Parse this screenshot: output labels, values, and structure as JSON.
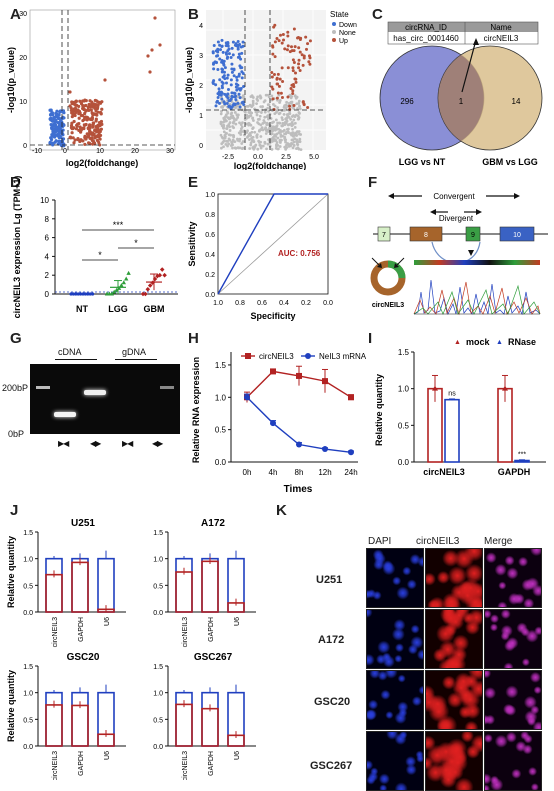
{
  "panels": {
    "A": "A",
    "B": "B",
    "C": "C",
    "D": "D",
    "E": "E",
    "F": "F",
    "G": "G",
    "H": "H",
    "I": "I",
    "J": "J",
    "K": "K"
  },
  "colors": {
    "red": "#b22222",
    "blue": "#1f3fbf",
    "green": "#2e9e3a",
    "down": "#3f6fd1",
    "up": "#b5523b",
    "none": "#bdbdbd",
    "venn_left": "#8a8fd6",
    "venn_right": "#d9be8c"
  },
  "volcanoA": {
    "xlabel": "log2(foldchange)",
    "ylabel": "-log10(p_value)",
    "xticks": [
      "-10",
      "0",
      "10",
      "20",
      "30"
    ],
    "yticks": [
      "0",
      "10",
      "20",
      "30"
    ]
  },
  "volcanoB": {
    "xlabel": "log2(foldchange)",
    "ylabel": "-log10(p_value)",
    "xticks": [
      "-2.5",
      "0.0",
      "2.5",
      "5.0"
    ],
    "yticks": [
      "0",
      "1",
      "2",
      "3",
      "4"
    ],
    "legend_title": "State",
    "legend": [
      "Down",
      "None",
      "Up"
    ]
  },
  "venn": {
    "table_headers": [
      "circRNA_ID",
      "Name"
    ],
    "table_row": [
      "has_circ_0001460",
      "circNEIL3"
    ],
    "left_count": "296",
    "center_count": "1",
    "right_count": "14",
    "left_label": "LGG vs NT",
    "right_label": "GBM vs LGG"
  },
  "chart_data": [
    {
      "panel": "D",
      "type": "scatter",
      "ylabel": "circNEIL3 expression\nLg (TPM+1)",
      "categories": [
        "NT",
        "LGG",
        "GBM"
      ],
      "yticks": [
        "0",
        "2",
        "4",
        "6",
        "8",
        "10"
      ],
      "ylim": [
        0,
        10
      ],
      "significance": [
        "*",
        "***",
        "*"
      ],
      "series": [
        {
          "category": "NT",
          "values": [
            0,
            0,
            0,
            0,
            0,
            0,
            0,
            0,
            0,
            0
          ]
        },
        {
          "category": "LGG",
          "values": [
            0,
            0,
            0,
            0.2,
            0.4,
            0.6,
            0.9,
            1.2,
            1.6,
            2.2
          ]
        },
        {
          "category": "GBM",
          "values": [
            0,
            0,
            0.5,
            0.9,
            1.2,
            1.6,
            1.9,
            2.0,
            2.6,
            2.0
          ]
        }
      ]
    },
    {
      "panel": "E",
      "type": "line",
      "xlabel": "Specificity",
      "ylabel": "Sensitivity",
      "xticks": [
        "1.0",
        "0.8",
        "0.6",
        "0.4",
        "0.2",
        "0.0"
      ],
      "yticks": [
        "0.0",
        "0.2",
        "0.4",
        "0.6",
        "0.8",
        "1.0"
      ],
      "annotation": "AUC: 0.756",
      "roc": [
        [
          1.0,
          0.0
        ],
        [
          0.49,
          1.0
        ],
        [
          0.0,
          1.0
        ]
      ]
    },
    {
      "panel": "H",
      "type": "line",
      "xlabel": "Times",
      "ylabel": "Relative RNA expression",
      "categories": [
        "0h",
        "4h",
        "8h",
        "12h",
        "24h"
      ],
      "yticks": [
        "0.0",
        "0.5",
        "1.0",
        "1.5"
      ],
      "ylim": [
        0,
        1.7
      ],
      "series": [
        {
          "name": "circNEIL3",
          "values": [
            1.0,
            1.4,
            1.33,
            1.25,
            1.0
          ]
        },
        {
          "name": "NeIL3 mRNA",
          "values": [
            1.0,
            0.6,
            0.27,
            0.2,
            0.15
          ]
        }
      ]
    },
    {
      "panel": "I",
      "type": "bar",
      "ylabel": "Relative quantity",
      "categories": [
        "circNEIL3",
        "GAPDH"
      ],
      "yticks": [
        "0.0",
        "0.5",
        "1.0",
        "1.5"
      ],
      "ylim": [
        0,
        1.5
      ],
      "series": [
        {
          "name": "mock",
          "values": [
            1.0,
            1.0
          ]
        },
        {
          "name": "RNase",
          "values": [
            0.85,
            0.02
          ]
        }
      ],
      "annotations": [
        "ns",
        "***"
      ]
    },
    {
      "panel": "J",
      "type": "bar",
      "subplots": [
        {
          "title": "U251",
          "categories": [
            "circNEIL3",
            "GAPDH",
            "U6"
          ],
          "nuclear_fraction": [
            0.7,
            0.93,
            0.05
          ]
        },
        {
          "title": "A172",
          "categories": [
            "circNEIL3",
            "GAPDH",
            "U6"
          ],
          "nuclear_fraction": [
            0.75,
            0.95,
            0.17
          ]
        },
        {
          "title": "GSC20",
          "categories": [
            "circNEIL3",
            "GAPDH",
            "U6"
          ],
          "nuclear_fraction": [
            0.77,
            0.76,
            0.22
          ]
        },
        {
          "title": "GSC267",
          "categories": [
            "circNEIL3",
            "GAPDH",
            "U6"
          ],
          "nuclear_fraction": [
            0.78,
            0.7,
            0.2
          ]
        }
      ],
      "ylabel": "Relative quantity",
      "yticks": [
        "0.0",
        "0.5",
        "1.0",
        "1.5"
      ],
      "ylim": [
        0,
        1.5
      ]
    }
  ],
  "diagramF": {
    "convergent": "Convergent",
    "divergent": "Divergent",
    "exons": [
      "7",
      "8",
      "9",
      "10"
    ],
    "circ_label": "circNEIL3"
  },
  "gelG": {
    "cdna": "cDNA",
    "gdna": "gDNA",
    "ladder_top": "200bP",
    "ladder_bottom": "0bP"
  },
  "legendI": [
    "mock",
    "RNase"
  ],
  "gridK": {
    "columns": [
      "DAPI",
      "circNEIL3",
      "Merge"
    ],
    "rows": [
      "U251",
      "A172",
      "GSC20",
      "GSC267"
    ]
  }
}
